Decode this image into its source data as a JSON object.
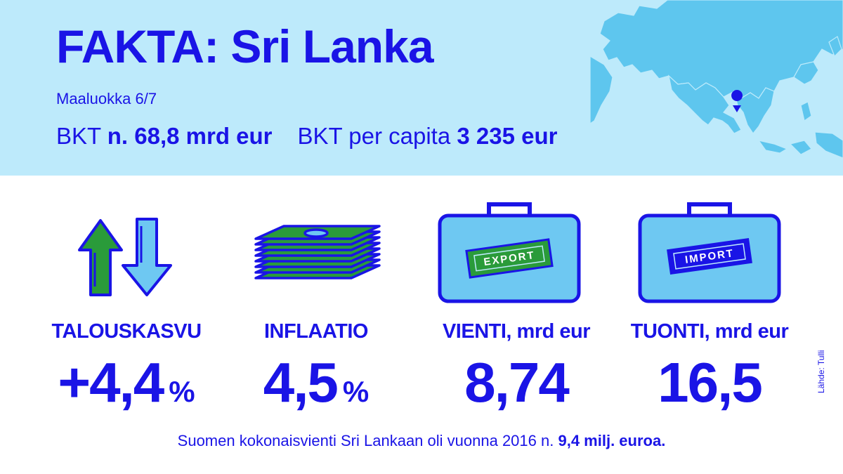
{
  "header": {
    "title": "FAKTA: Sri Lanka",
    "country_class": "Maaluokka 6/7",
    "gdp_label": "BKT",
    "gdp_value": "n. 68,8 mrd eur",
    "gdp_per_capita_label": "BKT per capita",
    "gdp_per_capita_value": "3 235 eur"
  },
  "stats": [
    {
      "label": "TALOUSKASVU",
      "value": "+4,4",
      "unit": "%",
      "icon": "growth-arrows-icon"
    },
    {
      "label": "INFLAATIO",
      "value": "4,5",
      "unit": "%",
      "icon": "money-stack-icon"
    },
    {
      "label": "VIENTI, mrd eur",
      "value": "8,74",
      "icon": "export-suitcase-icon",
      "tag": "EXPORT"
    },
    {
      "label": "TUONTI, mrd eur",
      "value": "16,5",
      "icon": "import-suitcase-icon",
      "tag": "IMPORT"
    }
  ],
  "footer": {
    "text": "Suomen kokonaisvienti Sri Lankaan oli vuonna 2016 n.",
    "highlight": "9,4 milj. euroa."
  },
  "source": "Lähde: Tulli",
  "colors": {
    "primary": "#1a14e6",
    "header_bg": "#bdeafb",
    "map_land": "#5ec6ee",
    "green": "#2a9b3a",
    "light_blue": "#6ec8f2"
  }
}
